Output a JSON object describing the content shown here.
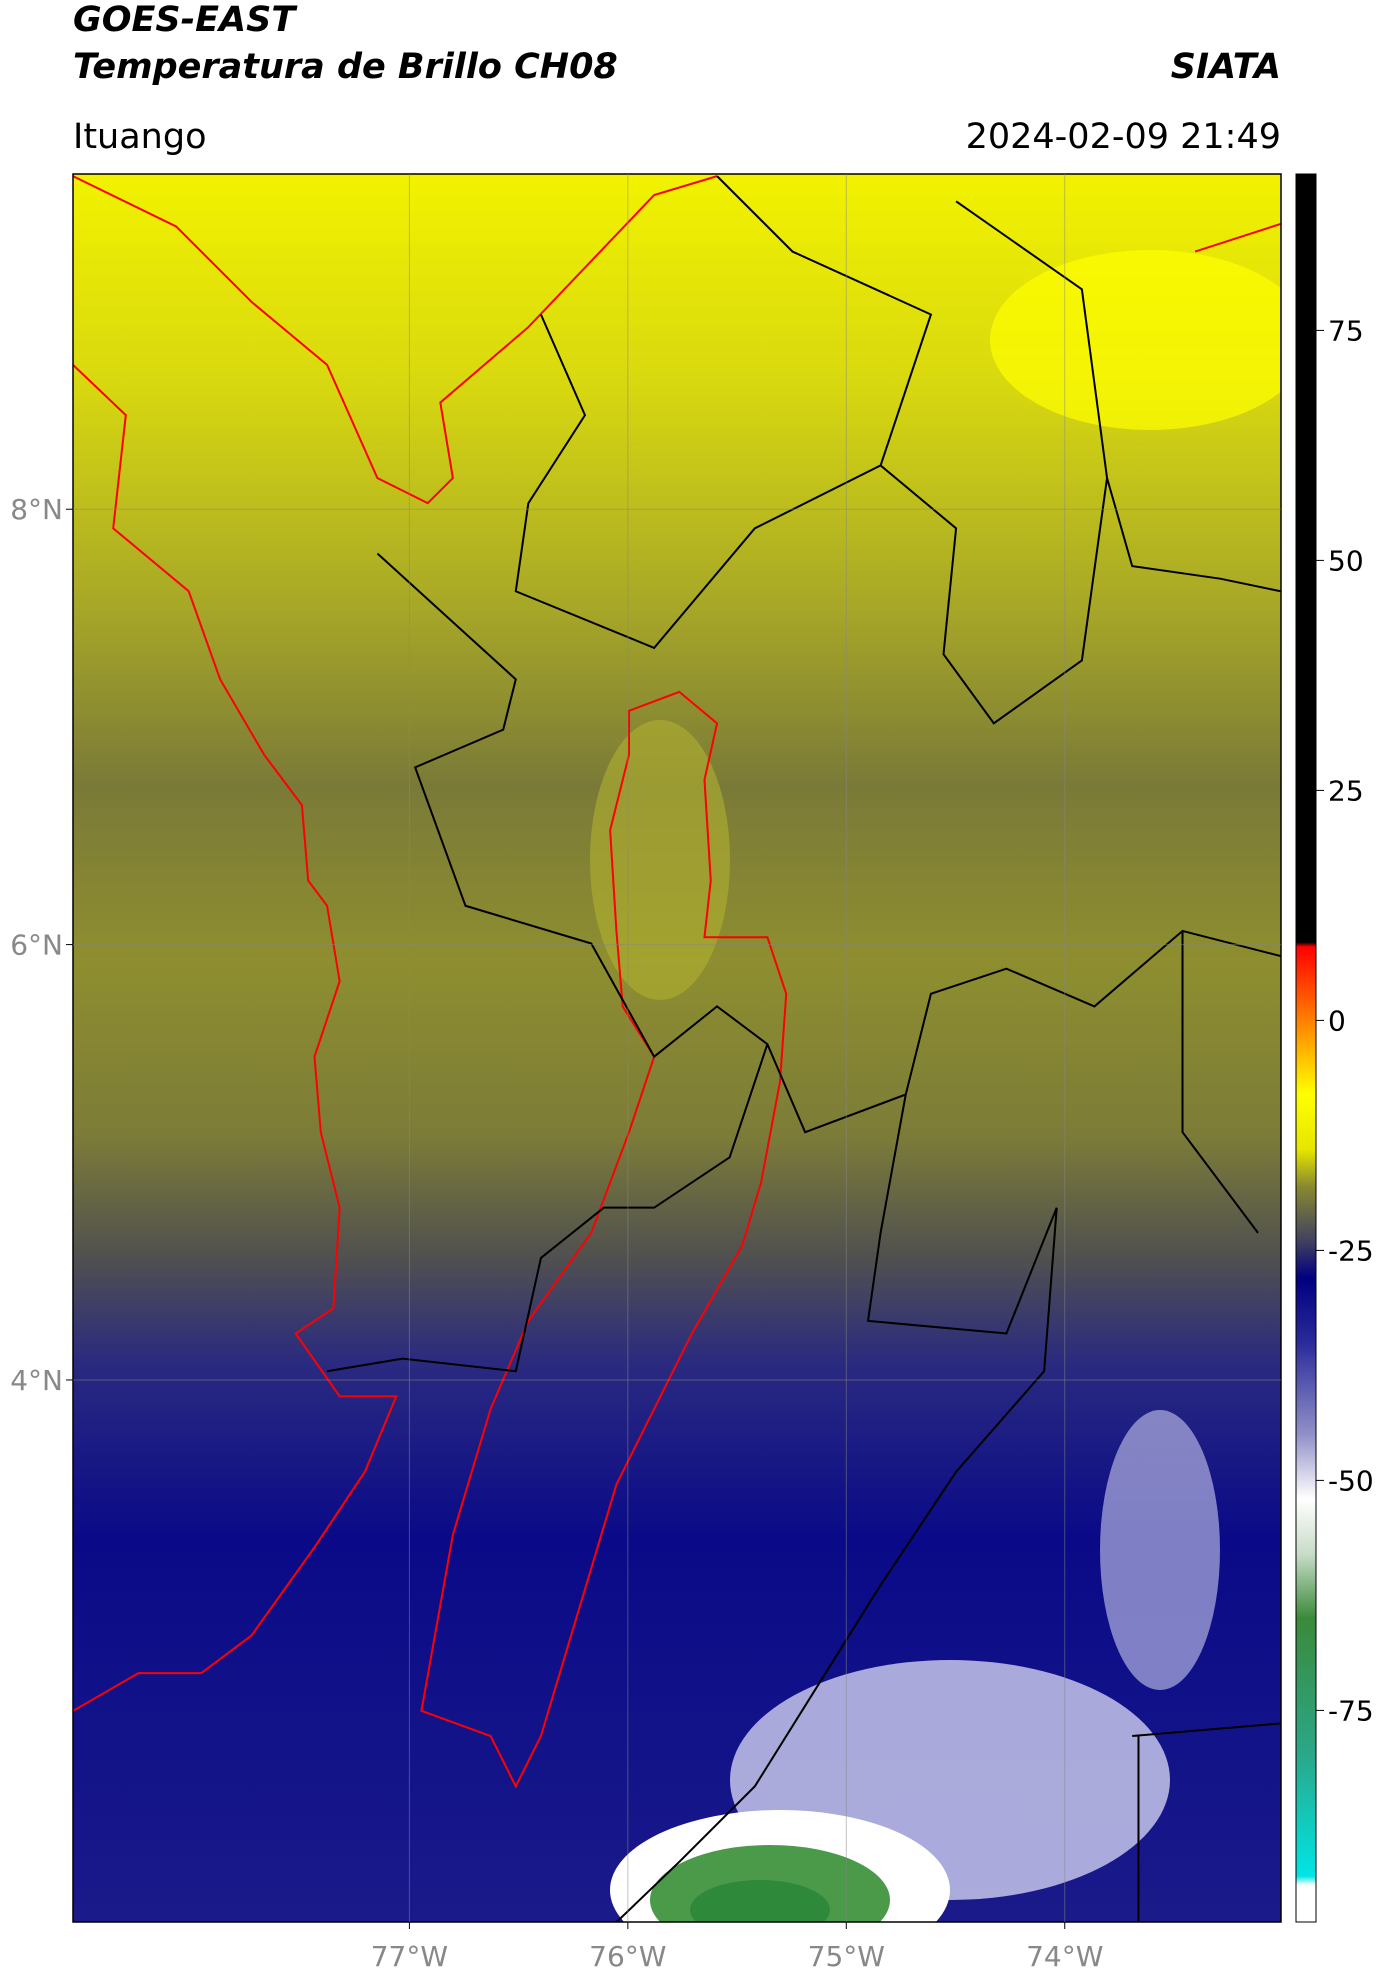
{
  "header": {
    "title": "GOES-EAST",
    "subtitle": "Temperatura de Brillo CH08",
    "brand": "SIATA",
    "location": "Ituango",
    "datetime": "2024-02-09 21:49"
  },
  "map": {
    "xlim": [
      -78.54,
      -73.01
    ],
    "ylim": [
      1.51,
      9.54
    ],
    "xticks": [
      {
        "value": -77,
        "label": "77°W"
      },
      {
        "value": -76,
        "label": "76°W"
      },
      {
        "value": -75,
        "label": "75°W"
      },
      {
        "value": -74,
        "label": "74°W"
      }
    ],
    "yticks": [
      {
        "value": 4,
        "label": "4°N"
      },
      {
        "value": 6,
        "label": "6°N"
      },
      {
        "value": 8,
        "label": "8°N"
      }
    ]
  },
  "colorbar": {
    "lim": [
      -98,
      92
    ],
    "ticks": [
      -75,
      -50,
      -25,
      0,
      25,
      50,
      75
    ],
    "stops": [
      {
        "value": -98,
        "color": "#ffffff"
      },
      {
        "value": -94,
        "color": "#ffffff"
      },
      {
        "value": -93,
        "color": "#00e5e5"
      },
      {
        "value": -80,
        "color": "#2aa88a"
      },
      {
        "value": -65,
        "color": "#3a8a3a"
      },
      {
        "value": -58,
        "color": "#c8dcc8"
      },
      {
        "value": -52,
        "color": "#ffffff"
      },
      {
        "value": -45,
        "color": "#9090c8"
      },
      {
        "value": -35,
        "color": "#2a2a9a"
      },
      {
        "value": -28,
        "color": "#000080"
      },
      {
        "value": -24,
        "color": "#404060"
      },
      {
        "value": -18,
        "color": "#8a8a30"
      },
      {
        "value": -14,
        "color": "#e6e600"
      },
      {
        "value": -8,
        "color": "#ffff00"
      },
      {
        "value": -4,
        "color": "#ffc000"
      },
      {
        "value": 2,
        "color": "#ff6000"
      },
      {
        "value": 8,
        "color": "#ff0000"
      },
      {
        "value": 8.5,
        "color": "#000000"
      },
      {
        "value": 92,
        "color": "#000000"
      }
    ]
  }
}
